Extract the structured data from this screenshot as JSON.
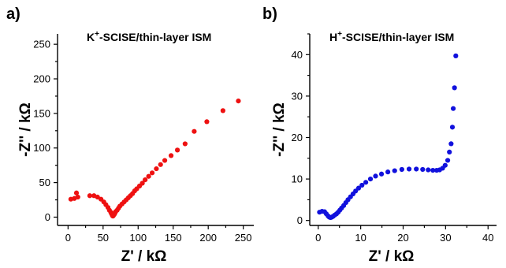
{
  "chart_data": [
    {
      "type": "scatter",
      "panel_label": "a)",
      "title_pre": "K",
      "title_sup": "+",
      "title_post": "-SCISE/thin-layer ISM",
      "xlabel": "Z' / kΩ",
      "ylabel": "-Z'' / kΩ",
      "xlim": [
        -15,
        265
      ],
      "ylim": [
        -12,
        265
      ],
      "xticks": [
        0,
        50,
        100,
        150,
        200,
        250
      ],
      "yticks": [
        0,
        50,
        100,
        150,
        200,
        250
      ],
      "grid": false,
      "color": "#ee1111",
      "series": [
        {
          "x": [
            4,
            9,
            12,
            14,
            31,
            37,
            42,
            47,
            51,
            54,
            57,
            59,
            61,
            62,
            63,
            63.5,
            64,
            64.5,
            65,
            66,
            67,
            68,
            70,
            72,
            74,
            77,
            80,
            83,
            86,
            89,
            92,
            95,
            98,
            102,
            106,
            110,
            115,
            120,
            126,
            132,
            138,
            147,
            156,
            167,
            180,
            198,
            221,
            243
          ],
          "y": [
            26,
            27,
            35,
            29,
            31,
            31,
            29,
            26,
            22,
            18,
            14,
            10,
            7,
            5,
            3,
            2,
            1.5,
            2,
            3,
            4,
            6,
            8,
            10,
            13,
            16,
            19,
            22,
            25,
            28,
            31,
            34,
            38,
            41,
            45,
            49,
            54,
            59,
            64,
            70,
            76,
            82,
            89,
            97,
            106,
            124,
            138,
            154,
            168
          ]
        }
      ]
    },
    {
      "type": "scatter",
      "panel_label": "b)",
      "title_pre": "H",
      "title_sup": "+",
      "title_post": "-SCISE/thin-layer ISM",
      "xlabel": "Z' / kΩ",
      "ylabel": "-Z'' / kΩ",
      "xlim": [
        -2,
        42
      ],
      "ylim": [
        -1.2,
        45
      ],
      "xticks": [
        0,
        10,
        20,
        30,
        40
      ],
      "yticks": [
        0,
        10,
        20,
        30,
        40
      ],
      "grid": false,
      "color": "#1111dd",
      "series": [
        {
          "x": [
            0.3,
            0.9,
            1.5,
            1.9,
            2.3,
            2.6,
            2.9,
            3.2,
            3.5,
            3.9,
            4.3,
            4.7,
            5.1,
            5.5,
            6.0,
            6.5,
            7.0,
            7.6,
            8.2,
            8.8,
            9.5,
            10.3,
            11.2,
            12.3,
            13.5,
            14.9,
            16.4,
            18.0,
            19.7,
            21.4,
            23.1,
            24.6,
            25.9,
            27.0,
            27.9,
            28.6,
            29.3,
            29.9,
            30.5,
            30.9,
            31.3,
            31.6,
            31.8,
            32.1,
            32.4
          ],
          "y": [
            2.0,
            2.2,
            2.1,
            1.6,
            1.1,
            0.8,
            0.7,
            0.8,
            1.0,
            1.3,
            1.6,
            2.0,
            2.5,
            3.0,
            3.6,
            4.3,
            5.0,
            5.7,
            6.4,
            7.1,
            7.8,
            8.5,
            9.2,
            10.0,
            10.7,
            11.2,
            11.7,
            12.0,
            12.3,
            12.4,
            12.4,
            12.3,
            12.2,
            12.1,
            12.1,
            12.2,
            12.6,
            13.3,
            14.5,
            16.5,
            18.5,
            22.5,
            27.0,
            32.0,
            39.7
          ]
        }
      ]
    }
  ]
}
